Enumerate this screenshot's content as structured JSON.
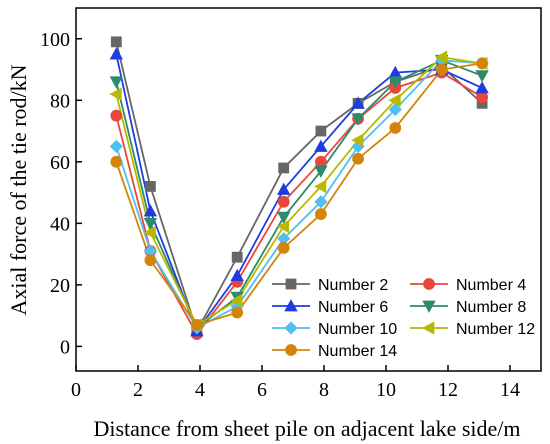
{
  "chart_data": {
    "type": "line",
    "title": "",
    "xlabel": "Distance from sheet pile on adjacent lake side/m",
    "ylabel": "Axial force of the tie rod/kN",
    "xlim": [
      0,
      15
    ],
    "ylim": [
      -8,
      110
    ],
    "x_ticks": [
      0,
      2,
      4,
      6,
      8,
      10,
      12,
      14
    ],
    "y_ticks": [
      0,
      20,
      40,
      60,
      80,
      100
    ],
    "grid": false,
    "legend_position": "lower-right",
    "x": [
      1.3,
      2.4,
      3.9,
      5.2,
      6.7,
      7.9,
      9.1,
      10.3,
      11.8,
      13.1
    ],
    "series": [
      {
        "name": "Number 2",
        "color": "#666666",
        "marker": "square",
        "values": [
          99,
          52,
          5,
          29,
          58,
          70,
          79,
          86,
          91,
          79
        ]
      },
      {
        "name": "Number 4",
        "color": "#e8483b",
        "marker": "circle",
        "values": [
          75,
          31,
          4,
          21,
          47,
          60,
          74,
          84,
          89,
          81
        ]
      },
      {
        "name": "Number 6",
        "color": "#1f3ce0",
        "marker": "triangle-up",
        "values": [
          95,
          44,
          5,
          23,
          51,
          65,
          79,
          89,
          90,
          84
        ]
      },
      {
        "name": "Number 8",
        "color": "#2a8c6a",
        "marker": "triangle-down",
        "values": [
          86,
          40,
          6,
          16,
          42,
          57,
          74,
          86,
          93,
          88
        ]
      },
      {
        "name": "Number 10",
        "color": "#4fc0f0",
        "marker": "diamond",
        "values": [
          65,
          31,
          6,
          13,
          35,
          47,
          65,
          77,
          93,
          92
        ]
      },
      {
        "name": "Number 12",
        "color": "#b8b800",
        "marker": "triangle-left",
        "values": [
          82,
          37,
          7,
          15,
          39,
          52,
          67,
          80,
          94,
          92
        ]
      },
      {
        "name": "Number 14",
        "color": "#d4840a",
        "marker": "circle",
        "values": [
          60,
          28,
          7,
          11,
          32,
          43,
          61,
          71,
          90,
          92
        ]
      }
    ]
  }
}
